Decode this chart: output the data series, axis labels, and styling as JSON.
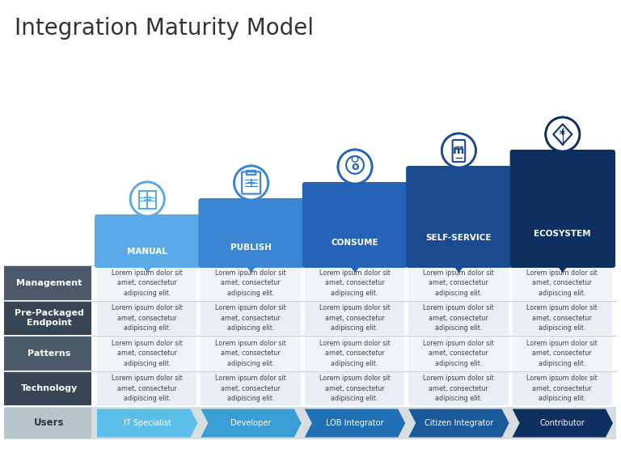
{
  "title": "Integration Maturity Model",
  "title_fontsize": 20,
  "title_color": "#333333",
  "background_color": "#ffffff",
  "columns": [
    "MANUAL",
    "PUBLISH",
    "CONSUME",
    "SELF-SERVICE",
    "ECOSYSTEM"
  ],
  "column_colors": [
    "#5BAAE8",
    "#3A85D4",
    "#2563B8",
    "#1A4A90",
    "#0D2F60"
  ],
  "rows": [
    "Management",
    "Pre-Packaged\nEndpoint",
    "Patterns",
    "Technology"
  ],
  "row_label_colors": [
    "#4A5A6A",
    "#374555",
    "#4A5A6A",
    "#374555"
  ],
  "row_bg_colors": [
    "#F0F4F8",
    "#E8EEF4",
    "#F0F4F8",
    "#E8EEF4"
  ],
  "users_row": [
    "IT Specialist",
    "Developer",
    "LOB Integrator",
    "Citizen Integrator",
    "Contributor"
  ],
  "users_colors": [
    "#5BBFEA",
    "#3A9ED4",
    "#2070B4",
    "#1A5A9A",
    "#0D3060"
  ],
  "cell_text": "Lorem ipsum dolor sit\namet, consectetur\nadipiscing elit.",
  "cell_text_color": "#444444",
  "users_bg_color": "#D8DDE2",
  "users_label_bg": "#B8C4CC"
}
